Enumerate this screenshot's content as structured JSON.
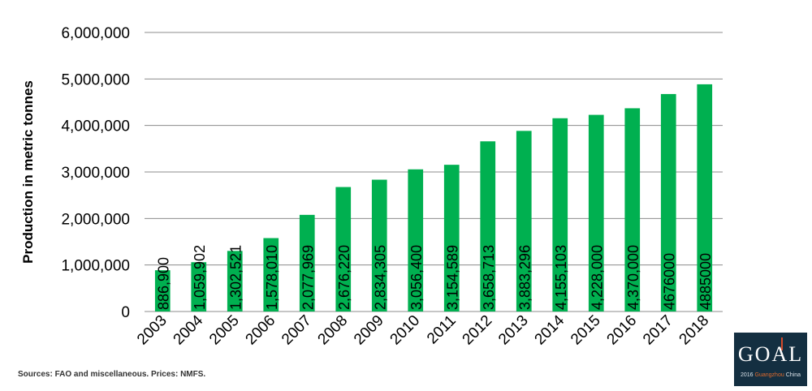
{
  "chart_data": {
    "type": "bar",
    "categories": [
      "2003",
      "2004",
      "2005",
      "2006",
      "2007",
      "2008",
      "2009",
      "2010",
      "2011",
      "2012",
      "2013",
      "2014",
      "2015",
      "2016",
      "2017",
      "2018"
    ],
    "values": [
      886900,
      1059902,
      1302521,
      1578010,
      2077969,
      2676220,
      2834305,
      3056400,
      3154589,
      3658713,
      3883296,
      4155103,
      4228000,
      4370000,
      4676000,
      4885000
    ],
    "data_labels": [
      "886,900",
      "1,059,902",
      "1,302,521",
      "1,578,010",
      "2,077,969",
      "2,676,220",
      "2,834,305",
      "3,056,400",
      "3,154,589",
      "3,658,713",
      "3,883,296",
      "4,155,103",
      "4,228,000",
      "4,370,000",
      "4676000",
      "4885000"
    ],
    "ylabel": "Production in metric tonnes",
    "xlabel": "",
    "ylim": [
      0,
      6000000
    ],
    "yticks": [
      0,
      1000000,
      2000000,
      3000000,
      4000000,
      5000000,
      6000000
    ],
    "ytick_labels": [
      "0",
      "1,000,000",
      "2,000,000",
      "3,000,000",
      "4,000,000",
      "5,000,000",
      "6,000,000"
    ],
    "grid": true,
    "bar_color": "#00b050"
  },
  "source_note": "Sources: FAO and miscellaneous. Prices: NMFS.",
  "logo": {
    "text": "GOAL",
    "sub_left": "2016",
    "sub_mid": "Guangzhou",
    "sub_right": "China",
    "bg_color": "#142f41"
  }
}
